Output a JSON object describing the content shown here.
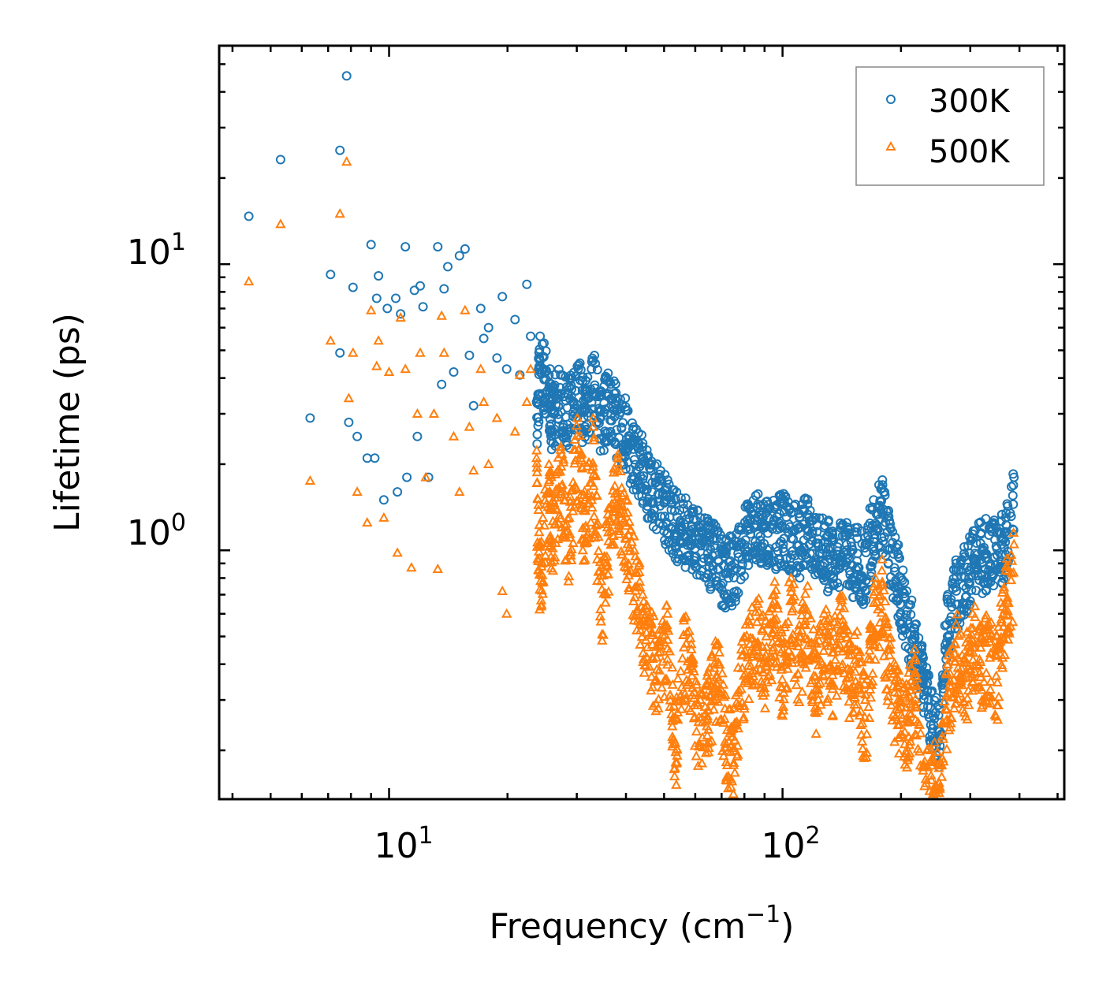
{
  "chart_data": {
    "type": "scatter",
    "title": "",
    "xlabel": "Frequency (cm",
    "xlabel_superscript": "−1",
    "xlabel_suffix": ")",
    "ylabel": "Lifetime (ps)",
    "xscale": "log",
    "yscale": "log",
    "xlim": [
      3.7,
      520
    ],
    "ylim": [
      0.135,
      58
    ],
    "x_ticks": [
      {
        "value": 10,
        "base": "10",
        "exp": "1"
      },
      {
        "value": 100,
        "base": "10",
        "exp": "2"
      }
    ],
    "y_ticks": [
      {
        "value": 1,
        "base": "10",
        "exp": "0"
      },
      {
        "value": 10,
        "base": "10",
        "exp": "1"
      }
    ],
    "legend": {
      "position": "top-right"
    },
    "series": [
      {
        "name": "300K",
        "color": "#1f77b4",
        "marker": "circle",
        "points": [
          [
            4.4,
            14.7
          ],
          [
            5.3,
            23.2
          ],
          [
            6.3,
            2.9
          ],
          [
            7.1,
            9.2
          ],
          [
            7.5,
            4.9
          ],
          [
            7.5,
            25.0
          ],
          [
            7.8,
            45.5
          ],
          [
            7.9,
            2.8
          ],
          [
            8.1,
            8.3
          ],
          [
            8.3,
            2.5
          ],
          [
            8.8,
            2.1
          ],
          [
            9.0,
            11.7
          ],
          [
            9.2,
            2.1
          ],
          [
            9.3,
            7.6
          ],
          [
            9.4,
            9.1
          ],
          [
            9.7,
            1.5
          ],
          [
            9.9,
            7.0
          ],
          [
            10.4,
            7.6
          ],
          [
            10.5,
            1.6
          ],
          [
            10.7,
            6.7
          ],
          [
            11.0,
            11.5
          ],
          [
            11.1,
            1.8
          ],
          [
            11.6,
            8.1
          ],
          [
            11.8,
            2.5
          ],
          [
            12.0,
            8.4
          ],
          [
            12.2,
            7.1
          ],
          [
            12.6,
            1.8
          ],
          [
            13.3,
            11.5
          ],
          [
            13.6,
            3.8
          ],
          [
            13.8,
            8.2
          ],
          [
            14.1,
            9.8
          ],
          [
            14.6,
            4.2
          ],
          [
            15.1,
            10.7
          ],
          [
            15.6,
            11.3
          ],
          [
            16.0,
            4.8
          ],
          [
            16.4,
            3.2
          ],
          [
            17.1,
            7.0
          ],
          [
            17.4,
            5.5
          ],
          [
            17.9,
            6.0
          ],
          [
            18.8,
            4.7
          ],
          [
            19.4,
            7.7
          ],
          [
            19.9,
            4.3
          ],
          [
            20.9,
            6.4
          ],
          [
            21.5,
            4.1
          ],
          [
            22.4,
            8.5
          ],
          [
            22.9,
            5.6
          ],
          [
            23.7,
            3.3
          ],
          [
            24.2,
            5.6
          ],
          [
            25.5,
            4.1
          ],
          [
            26.0,
            3.6
          ],
          [
            27.3,
            4.1
          ],
          [
            28.7,
            3.7
          ],
          [
            30.1,
            4.4
          ],
          [
            31.5,
            3.6
          ],
          [
            33.0,
            4.6
          ],
          [
            34.6,
            3.5
          ],
          [
            36.3,
            3.9
          ],
          [
            38.1,
            3.4
          ],
          [
            40.0,
            3.1
          ],
          [
            42.0,
            2.5
          ],
          [
            44.1,
            2.3
          ],
          [
            46.3,
            1.9
          ],
          [
            48.6,
            1.8
          ],
          [
            51.0,
            1.65
          ],
          [
            53.5,
            1.5
          ],
          [
            56.1,
            1.4
          ],
          [
            58.9,
            1.35
          ],
          [
            61.8,
            1.3
          ],
          [
            64.8,
            1.2
          ],
          [
            68.0,
            1.1
          ],
          [
            71.4,
            1.0
          ],
          [
            74.9,
            1.05
          ],
          [
            78.6,
            1.2
          ],
          [
            82.5,
            1.4
          ],
          [
            86.6,
            1.45
          ],
          [
            90.9,
            1.35
          ],
          [
            95.4,
            1.4
          ],
          [
            100.1,
            1.45
          ],
          [
            105.1,
            1.35
          ],
          [
            110.3,
            1.3
          ],
          [
            115.8,
            1.45
          ],
          [
            121.5,
            1.3
          ],
          [
            127.5,
            1.2
          ],
          [
            133.8,
            1.15
          ],
          [
            140.4,
            1.2
          ],
          [
            147.4,
            1.15
          ],
          [
            154.7,
            1.1
          ],
          [
            162.3,
            1.05
          ],
          [
            170.4,
            1.5
          ],
          [
            178.8,
            1.65
          ],
          [
            187.7,
            1.2
          ],
          [
            197.0,
            0.95
          ],
          [
            206.7,
            0.72
          ],
          [
            217.0,
            0.55
          ],
          [
            227.7,
            0.42
          ],
          [
            239.0,
            0.32
          ],
          [
            250.8,
            0.28
          ],
          [
            263.2,
            0.7
          ],
          [
            276.3,
            0.85
          ],
          [
            290.0,
            0.95
          ],
          [
            304.3,
            1.1
          ],
          [
            319.4,
            1.15
          ],
          [
            335.2,
            1.2
          ],
          [
            351.8,
            1.15
          ],
          [
            369.2,
            1.3
          ],
          [
            387.5,
            1.8
          ]
        ]
      },
      {
        "name": "500K",
        "color": "#ff7f0e",
        "marker": "triangle",
        "points": [
          [
            4.4,
            8.7
          ],
          [
            5.3,
            13.8
          ],
          [
            6.3,
            1.75
          ],
          [
            7.1,
            5.4
          ],
          [
            7.5,
            15.0
          ],
          [
            7.8,
            22.8
          ],
          [
            7.9,
            3.4
          ],
          [
            8.1,
            4.9
          ],
          [
            8.3,
            1.6
          ],
          [
            8.8,
            1.25
          ],
          [
            9.0,
            6.9
          ],
          [
            9.3,
            4.4
          ],
          [
            9.4,
            5.4
          ],
          [
            9.7,
            1.3
          ],
          [
            10.0,
            4.2
          ],
          [
            10.5,
            0.98
          ],
          [
            10.7,
            6.5
          ],
          [
            11.0,
            4.3
          ],
          [
            11.4,
            0.87
          ],
          [
            11.8,
            3.0
          ],
          [
            12.0,
            4.9
          ],
          [
            12.4,
            1.8
          ],
          [
            13.0,
            3.0
          ],
          [
            13.3,
            0.86
          ],
          [
            13.6,
            6.6
          ],
          [
            13.8,
            4.9
          ],
          [
            14.6,
            2.5
          ],
          [
            15.1,
            1.6
          ],
          [
            15.6,
            6.9
          ],
          [
            16.0,
            2.7
          ],
          [
            16.4,
            1.9
          ],
          [
            17.1,
            4.3
          ],
          [
            17.4,
            3.3
          ],
          [
            17.9,
            2.0
          ],
          [
            18.8,
            2.9
          ],
          [
            19.4,
            0.72
          ],
          [
            19.9,
            0.6
          ],
          [
            20.9,
            2.6
          ],
          [
            21.5,
            4.1
          ],
          [
            22.4,
            3.3
          ],
          [
            22.9,
            4.3
          ],
          [
            23.7,
            2.1
          ],
          [
            24.2,
            1.05
          ],
          [
            25.5,
            2.0
          ],
          [
            26.0,
            1.4
          ],
          [
            27.3,
            2.3
          ],
          [
            28.7,
            1.3
          ],
          [
            30.1,
            2.9
          ],
          [
            31.5,
            1.5
          ],
          [
            33.0,
            2.7
          ],
          [
            34.6,
            0.78
          ],
          [
            36.3,
            1.4
          ],
          [
            38.1,
            2.1
          ],
          [
            40.0,
            1.5
          ],
          [
            42.0,
            1.0
          ],
          [
            44.1,
            0.7
          ],
          [
            46.3,
            0.55
          ],
          [
            48.6,
            0.48
          ],
          [
            51.0,
            0.6
          ],
          [
            53.5,
            0.26
          ],
          [
            56.1,
            0.58
          ],
          [
            58.9,
            0.42
          ],
          [
            61.8,
            0.3
          ],
          [
            64.8,
            0.35
          ],
          [
            68.0,
            0.47
          ],
          [
            71.4,
            0.28
          ],
          [
            74.9,
            0.24
          ],
          [
            78.6,
            0.45
          ],
          [
            82.5,
            0.55
          ],
          [
            86.6,
            0.65
          ],
          [
            90.9,
            0.5
          ],
          [
            95.4,
            0.7
          ],
          [
            100.1,
            0.45
          ],
          [
            105.1,
            0.8
          ],
          [
            110.3,
            0.5
          ],
          [
            115.8,
            0.75
          ],
          [
            121.5,
            0.42
          ],
          [
            127.5,
            0.6
          ],
          [
            133.8,
            0.48
          ],
          [
            140.4,
            0.68
          ],
          [
            147.4,
            0.47
          ],
          [
            154.7,
            0.52
          ],
          [
            162.3,
            0.3
          ],
          [
            170.4,
            0.7
          ],
          [
            178.8,
            0.85
          ],
          [
            187.7,
            0.45
          ],
          [
            197.0,
            0.35
          ],
          [
            206.7,
            0.32
          ],
          [
            217.0,
            0.42
          ],
          [
            227.7,
            0.17
          ],
          [
            239.0,
            0.2
          ],
          [
            250.8,
            0.18
          ],
          [
            263.2,
            0.4
          ],
          [
            276.3,
            0.55
          ],
          [
            290.0,
            0.42
          ],
          [
            304.3,
            0.6
          ],
          [
            319.4,
            0.5
          ],
          [
            335.2,
            0.55
          ],
          [
            351.8,
            0.45
          ],
          [
            369.2,
            0.85
          ],
          [
            387.5,
            1.05
          ]
        ]
      }
    ]
  }
}
